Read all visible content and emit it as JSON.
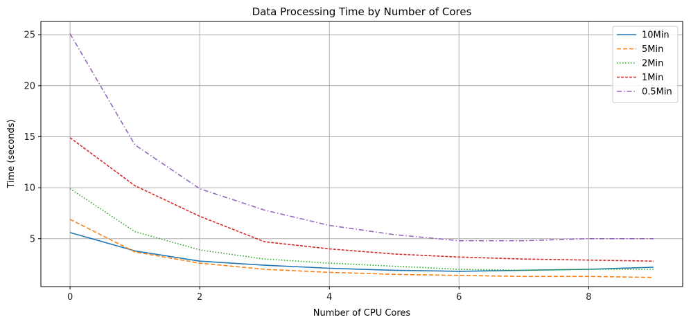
{
  "chart_data": {
    "type": "line",
    "title": "Data Processing Time by Number of Cores",
    "xlabel": "Number of CPU Cores",
    "ylabel": "Time (seconds)",
    "x": [
      0,
      1,
      2,
      3,
      4,
      5,
      6,
      7,
      8,
      9
    ],
    "xlim": [
      -0.45,
      9.45
    ],
    "ylim": [
      0.3,
      26.3
    ],
    "xticks": [
      0,
      2,
      4,
      6,
      8
    ],
    "yticks": [
      5,
      10,
      15,
      20,
      25
    ],
    "grid": true,
    "legend_position": "top-right",
    "series": [
      {
        "name": "10Min",
        "color": "#1f77b4",
        "dash": "solid",
        "values": [
          5.6,
          3.8,
          2.8,
          2.4,
          2.1,
          1.9,
          1.8,
          1.9,
          2.0,
          2.2
        ]
      },
      {
        "name": "5Min",
        "color": "#ff7f0e",
        "dash": "dashed",
        "values": [
          6.9,
          3.7,
          2.6,
          2.0,
          1.7,
          1.5,
          1.4,
          1.3,
          1.3,
          1.2
        ]
      },
      {
        "name": "2Min",
        "color": "#2ca02c",
        "dash": "dotted",
        "values": [
          9.9,
          5.7,
          3.9,
          3.0,
          2.6,
          2.3,
          2.0,
          1.9,
          2.0,
          2.0
        ]
      },
      {
        "name": "1Min",
        "color": "#d62728",
        "dash": "densely-dashed",
        "values": [
          14.9,
          10.2,
          7.2,
          4.7,
          4.0,
          3.5,
          3.2,
          3.0,
          2.9,
          2.8
        ]
      },
      {
        "name": "0.5Min",
        "color": "#9467bd",
        "dash": "dash-dot",
        "values": [
          25.1,
          14.2,
          9.9,
          7.8,
          6.3,
          5.4,
          4.8,
          4.8,
          5.0,
          5.0
        ]
      }
    ]
  }
}
